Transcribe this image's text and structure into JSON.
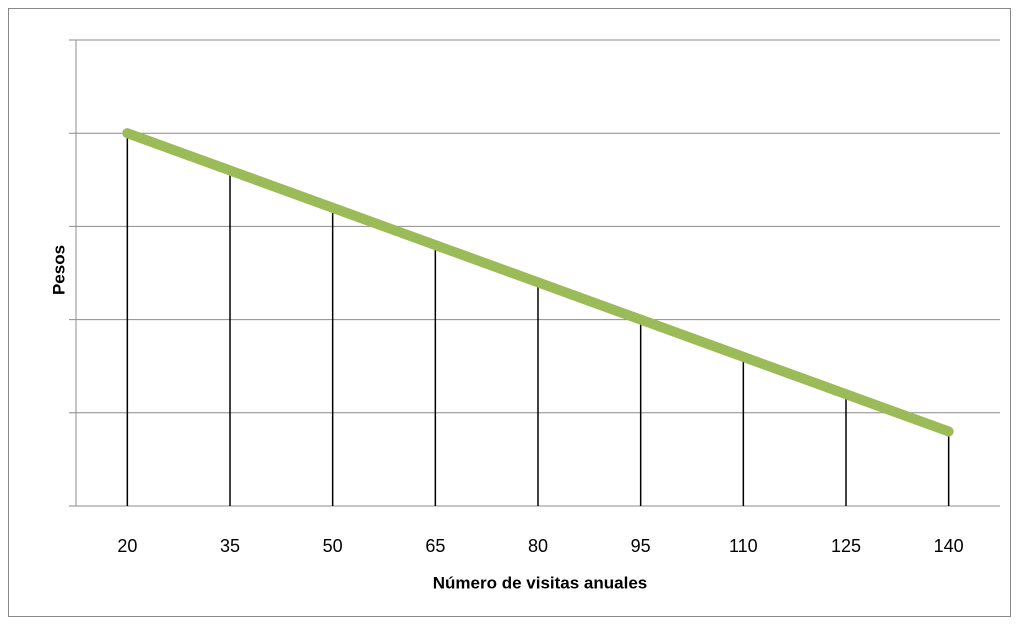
{
  "chart_data": {
    "type": "line",
    "xlabel": "Número de visitas anuales",
    "ylabel": "Pesos",
    "categories": [
      "20",
      "35",
      "50",
      "65",
      "80",
      "95",
      "110",
      "125",
      "140"
    ],
    "series": [
      {
        "name": "Pesos",
        "color": "#9bbb59",
        "values": [
          4.0,
          3.6,
          3.2,
          2.8,
          2.4,
          2.0,
          1.6,
          1.2,
          0.8
        ]
      }
    ],
    "ylim": [
      0,
      5
    ],
    "yticks": [
      0,
      1,
      2,
      3,
      4,
      5
    ],
    "grid": true,
    "drop_lines": true
  }
}
